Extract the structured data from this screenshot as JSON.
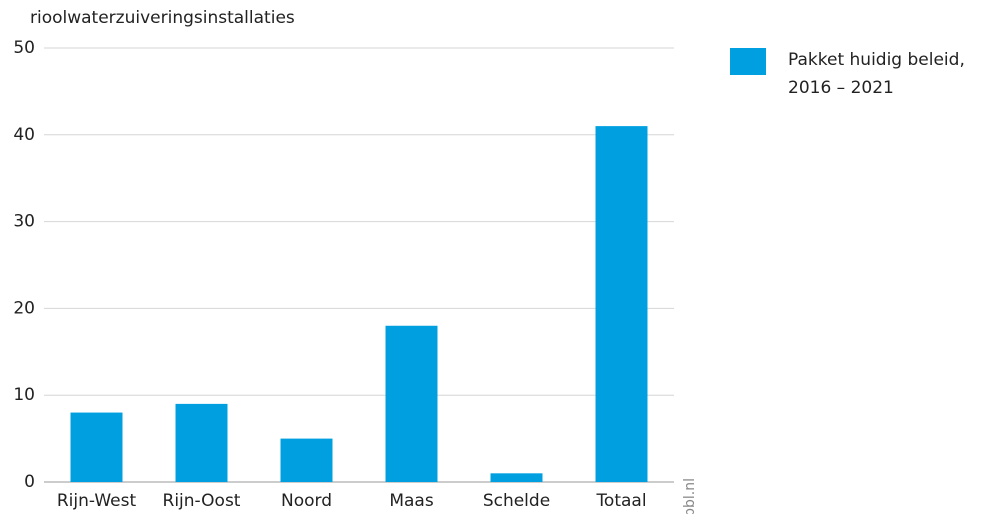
{
  "chart_data": {
    "type": "bar",
    "title": "rioolwaterzuiveringsinstallaties",
    "categories": [
      "Rijn-West",
      "Rijn-Oost",
      "Noord",
      "Maas",
      "Schelde",
      "Totaal"
    ],
    "series": [
      {
        "name": "Pakket huidig beleid, 2016 – 2021",
        "color": "#00a0e0",
        "values": [
          8,
          9,
          5,
          18,
          1,
          41
        ]
      }
    ],
    "ylim": [
      0,
      50
    ],
    "yticks": [
      0,
      10,
      20,
      30,
      40,
      50
    ],
    "grid": true,
    "legend": "right",
    "source": "pbl.nl"
  }
}
